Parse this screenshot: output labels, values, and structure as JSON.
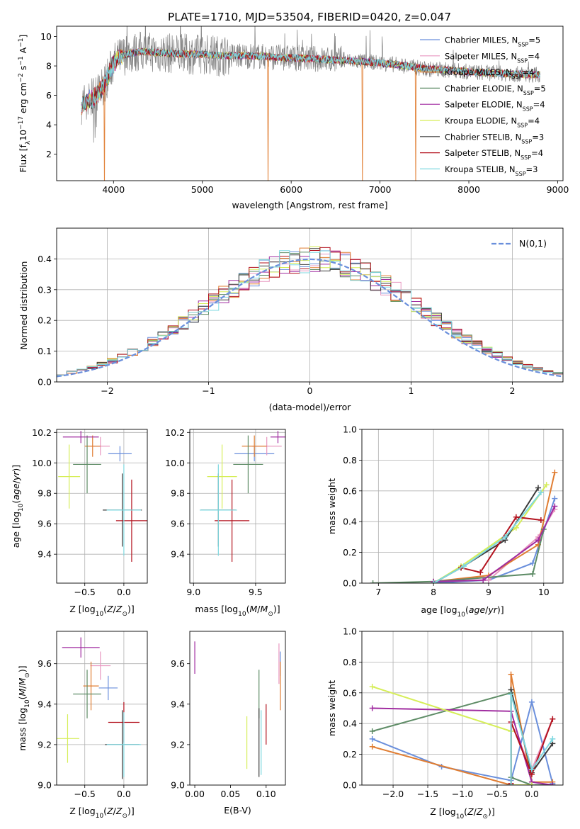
{
  "figure_title": "PLATE=1710, MJD=53504, FIBERID=0420, z=0.047",
  "colors": {
    "Chabrier MILES": "#6a8fdc",
    "Salpeter MILES": "#e897c0",
    "Kroupa MILES": "#e07d32",
    "Chabrier ELODIE": "#5e8c66",
    "Salpeter ELODIE": "#a02ca0",
    "Kroupa ELODIE": "#d6ee58",
    "Chabrier STELIB": "#3a3a3a",
    "Salpeter STELIB": "#b3121e",
    "Kroupa STELIB": "#7fd8e0",
    "data": "#808080",
    "normal": "#6a8fdc"
  },
  "chart_data": [
    {
      "id": "spectrum",
      "type": "line",
      "xlabel": "wavelength [Angstrom, rest frame]",
      "ylabel": "Flux [f_λ10^-17 erg cm^-2 s^-1 A^-1]",
      "xlim": [
        3360,
        9060
      ],
      "ylim": [
        0.2,
        10.7
      ],
      "xticks": [
        4000,
        5000,
        6000,
        7000,
        8000,
        9000
      ],
      "yticks": [
        2,
        4,
        6,
        8,
        10
      ],
      "grid": false,
      "legend_position": "top-right",
      "continuum": {
        "x": [
          3640,
          3700,
          3800,
          3900,
          4000,
          4100,
          4300,
          4500,
          4800,
          5000,
          5200,
          5500,
          5800,
          6000,
          6200,
          6500,
          6800,
          7000,
          7300,
          7500,
          7800,
          8000,
          8300,
          8500,
          8800
        ],
        "y": [
          5.4,
          5.6,
          5.9,
          6.8,
          8.2,
          8.7,
          9.0,
          8.9,
          8.8,
          8.8,
          8.7,
          8.7,
          8.6,
          8.55,
          8.5,
          8.4,
          8.3,
          8.2,
          8.0,
          7.8,
          7.7,
          7.6,
          7.5,
          7.45,
          7.4
        ]
      },
      "spikes": [
        {
          "series": "Kroupa MILES",
          "x": 3900
        },
        {
          "series": "Kroupa MILES",
          "x": 5740
        },
        {
          "series": "Kroupa MILES",
          "x": 6800
        },
        {
          "series": "Kroupa MILES",
          "x": 7400
        }
      ],
      "series": [
        {
          "name": "Chabrier MILES",
          "nssp": "5"
        },
        {
          "name": "Salpeter MILES",
          "nssp": "4"
        },
        {
          "name": "Kroupa MILES",
          "nssp": "4"
        },
        {
          "name": "Chabrier ELODIE",
          "nssp": "5"
        },
        {
          "name": "Salpeter ELODIE",
          "nssp": "4"
        },
        {
          "name": "Kroupa ELODIE",
          "nssp": "4"
        },
        {
          "name": "Chabrier STELIB",
          "nssp": "3"
        },
        {
          "name": "Salpeter STELIB",
          "nssp": "4"
        },
        {
          "name": "Kroupa STELIB",
          "nssp": "3"
        }
      ]
    },
    {
      "id": "residuals",
      "type": "histogram",
      "xlabel": "(data-model)/error",
      "ylabel": "Normed distribution",
      "xlim": [
        -2.5,
        2.5
      ],
      "ylim": [
        0,
        0.5
      ],
      "xticks": [
        -2,
        -1,
        0,
        1,
        2
      ],
      "yticks": [
        0.0,
        0.1,
        0.2,
        0.3,
        0.4
      ],
      "grid": true,
      "legend_position": "top-right",
      "normal_label": "N(0,1)",
      "bin_width": 0.1
    },
    {
      "id": "age_vs_Z",
      "type": "scatter",
      "xlabel": "Z [log10(Z/Z_sun)]",
      "ylabel": "age  [log10(age/yr)]",
      "xlim": [
        -0.86,
        0.3
      ],
      "ylim": [
        9.21,
        10.22
      ],
      "xticks": [
        -0.5,
        0.0
      ],
      "yticks": [
        9.4,
        9.6,
        9.8,
        10.0,
        10.2
      ],
      "grid": true,
      "points": [
        {
          "series": "Chabrier MILES",
          "x": -0.05,
          "y": 10.06,
          "xerr": 0.15,
          "yerr": 0.05
        },
        {
          "series": "Salpeter MILES",
          "x": -0.3,
          "y": 10.11,
          "xerr": 0.12,
          "yerr": 0.06
        },
        {
          "series": "Kroupa MILES",
          "x": -0.4,
          "y": 10.11,
          "xerr": 0.1,
          "yerr": 0.07
        },
        {
          "series": "Chabrier ELODIE",
          "x": -0.47,
          "y": 9.99,
          "xerr": 0.18,
          "yerr": 0.19
        },
        {
          "series": "Salpeter ELODIE",
          "x": -0.55,
          "y": 10.17,
          "xerr": 0.23,
          "yerr": 0.04
        },
        {
          "series": "Kroupa ELODIE",
          "x": -0.7,
          "y": 9.91,
          "xerr": 0.14,
          "yerr": 0.21
        },
        {
          "series": "Chabrier STELIB",
          "x": -0.02,
          "y": 9.69,
          "xerr": 0.25,
          "yerr": 0.24
        },
        {
          "series": "Salpeter STELIB",
          "x": 0.1,
          "y": 9.62,
          "xerr": 0.2,
          "yerr": 0.27
        },
        {
          "series": "Kroupa STELIB",
          "x": 0.0,
          "y": 9.69,
          "xerr": 0.22,
          "yerr": 0.3
        }
      ]
    },
    {
      "id": "age_vs_mass",
      "type": "scatter",
      "xlabel": "mass [log10(M/M_sun)]",
      "ylabel": "",
      "xlim": [
        8.97,
        9.74
      ],
      "ylim": [
        9.21,
        10.22
      ],
      "xticks": [
        9.0,
        9.5
      ],
      "yticks": [
        9.4,
        9.6,
        9.8,
        10.0,
        10.2
      ],
      "grid": true,
      "points": [
        {
          "series": "Chabrier MILES",
          "x": 9.49,
          "y": 10.06,
          "xerr": 0.16,
          "yerr": 0.05
        },
        {
          "series": "Salpeter MILES",
          "x": 9.59,
          "y": 10.11,
          "xerr": 0.12,
          "yerr": 0.06
        },
        {
          "series": "Kroupa MILES",
          "x": 9.49,
          "y": 10.11,
          "xerr": 0.1,
          "yerr": 0.07
        },
        {
          "series": "Chabrier ELODIE",
          "x": 9.44,
          "y": 9.99,
          "xerr": 0.12,
          "yerr": 0.19
        },
        {
          "series": "Salpeter ELODIE",
          "x": 9.68,
          "y": 10.17,
          "xerr": 0.06,
          "yerr": 0.04
        },
        {
          "series": "Kroupa ELODIE",
          "x": 9.23,
          "y": 9.91,
          "xerr": 0.12,
          "yerr": 0.21
        },
        {
          "series": "Chabrier STELIB",
          "x": 9.2,
          "y": 9.69,
          "xerr": 0.14,
          "yerr": 0.24
        },
        {
          "series": "Salpeter STELIB",
          "x": 9.31,
          "y": 9.62,
          "xerr": 0.14,
          "yerr": 0.27
        },
        {
          "series": "Kroupa STELIB",
          "x": 9.2,
          "y": 9.69,
          "xerr": 0.15,
          "yerr": 0.3
        }
      ]
    },
    {
      "id": "massweight_vs_age",
      "type": "line",
      "xlabel": "age  [log10(age/yr)]",
      "ylabel": "mass weight",
      "xlim": [
        6.7,
        10.35
      ],
      "ylim": [
        0,
        1
      ],
      "xticks": [
        7,
        8,
        9,
        10
      ],
      "yticks": [
        0.0,
        0.2,
        0.4,
        0.6,
        0.8,
        1.0
      ],
      "grid": true,
      "series": [
        {
          "name": "Chabrier MILES",
          "x": [
            8.0,
            9.0,
            9.8,
            10.2
          ],
          "y": [
            0.0,
            0.02,
            0.13,
            0.55
          ]
        },
        {
          "name": "Salpeter MILES",
          "x": [
            8.0,
            9.0,
            9.9,
            10.2
          ],
          "y": [
            0.01,
            0.02,
            0.3,
            0.48
          ]
        },
        {
          "name": "Kroupa MILES",
          "x": [
            8.0,
            9.0,
            9.9,
            10.2
          ],
          "y": [
            0.01,
            0.05,
            0.25,
            0.72
          ]
        },
        {
          "name": "Chabrier ELODIE",
          "x": [
            6.9,
            8.0,
            9.8,
            10.0
          ],
          "y": [
            0.0,
            0.01,
            0.06,
            0.35
          ]
        },
        {
          "name": "Salpeter ELODIE",
          "x": [
            8.0,
            8.9,
            9.9,
            10.2
          ],
          "y": [
            0.01,
            0.02,
            0.28,
            0.5
          ]
        },
        {
          "name": "Kroupa ELODIE",
          "x": [
            8.0,
            8.5,
            9.5,
            10.05
          ],
          "y": [
            0.0,
            0.11,
            0.36,
            0.64
          ]
        },
        {
          "name": "Chabrier STELIB",
          "x": [
            8.0,
            8.5,
            9.3,
            9.9
          ],
          "y": [
            0.0,
            0.1,
            0.28,
            0.62
          ]
        },
        {
          "name": "Salpeter STELIB",
          "x": [
            8.5,
            8.85,
            9.5,
            9.95
          ],
          "y": [
            0.1,
            0.07,
            0.43,
            0.41
          ]
        },
        {
          "name": "Kroupa STELIB",
          "x": [
            8.0,
            8.55,
            9.3,
            9.95
          ],
          "y": [
            0.0,
            0.11,
            0.3,
            0.59
          ]
        }
      ]
    },
    {
      "id": "mass_vs_Z",
      "type": "scatter",
      "xlabel": "Z [log10(Z/Z_sun)]",
      "ylabel": "mass [log10(M/M_sun)]",
      "xlim": [
        -0.86,
        0.3
      ],
      "ylim": [
        9.0,
        9.76
      ],
      "xticks": [
        -0.5,
        0.0
      ],
      "yticks": [
        9.0,
        9.2,
        9.4,
        9.6
      ],
      "grid": true,
      "points": [
        {
          "series": "Chabrier MILES",
          "x": -0.2,
          "y": 9.48,
          "xerr": 0.12,
          "yerr": 0.06
        },
        {
          "series": "Salpeter MILES",
          "x": -0.3,
          "y": 9.59,
          "xerr": 0.13,
          "yerr": 0.07
        },
        {
          "series": "Kroupa MILES",
          "x": -0.42,
          "y": 9.49,
          "xerr": 0.1,
          "yerr": 0.12
        },
        {
          "series": "Chabrier ELODIE",
          "x": -0.47,
          "y": 9.45,
          "xerr": 0.18,
          "yerr": 0.12
        },
        {
          "series": "Salpeter ELODIE",
          "x": -0.55,
          "y": 9.68,
          "xerr": 0.24,
          "yerr": 0.05
        },
        {
          "series": "Kroupa ELODIE",
          "x": -0.72,
          "y": 9.23,
          "xerr": 0.15,
          "yerr": 0.12
        },
        {
          "series": "Chabrier STELIB",
          "x": -0.02,
          "y": 9.2,
          "xerr": 0.22,
          "yerr": 0.17
        },
        {
          "series": "Salpeter STELIB",
          "x": 0.0,
          "y": 9.31,
          "xerr": 0.2,
          "yerr": 0.1
        },
        {
          "series": "Kroupa STELIB",
          "x": 0.0,
          "y": 9.2,
          "xerr": 0.22,
          "yerr": 0.16
        }
      ]
    },
    {
      "id": "mass_vs_ebv",
      "type": "scatter",
      "xlabel": "E(B-V)",
      "ylabel": "",
      "xlim": [
        -0.007,
        0.127
      ],
      "ylim": [
        9.0,
        9.76
      ],
      "xticks": [
        0.0,
        0.05,
        0.1
      ],
      "yticks": [
        9.0,
        9.2,
        9.4,
        9.6
      ],
      "grid": false,
      "points": [
        {
          "series": "Chabrier MILES",
          "x": 0.12,
          "y": 9.6,
          "xerr": 0.0,
          "yerr": 0.06
        },
        {
          "series": "Salpeter MILES",
          "x": 0.118,
          "y": 9.6,
          "xerr": 0.0,
          "yerr": 0.1
        },
        {
          "series": "Kroupa MILES",
          "x": 0.12,
          "y": 9.49,
          "xerr": 0.0,
          "yerr": 0.12
        },
        {
          "series": "Chabrier ELODIE",
          "x": 0.09,
          "y": 9.45,
          "xerr": 0.0,
          "yerr": 0.12
        },
        {
          "series": "Salpeter ELODIE",
          "x": 0.0,
          "y": 9.63,
          "xerr": 0.0,
          "yerr": 0.08
        },
        {
          "series": "Kroupa ELODIE",
          "x": 0.073,
          "y": 9.21,
          "xerr": 0.0,
          "yerr": 0.13
        },
        {
          "series": "Chabrier STELIB",
          "x": 0.09,
          "y": 9.21,
          "xerr": 0.0,
          "yerr": 0.17
        },
        {
          "series": "Salpeter STELIB",
          "x": 0.1,
          "y": 9.3,
          "xerr": 0.0,
          "yerr": 0.1
        },
        {
          "series": "Kroupa STELIB",
          "x": 0.093,
          "y": 9.21,
          "xerr": 0.0,
          "yerr": 0.16
        }
      ]
    },
    {
      "id": "massweight_vs_Z",
      "type": "line",
      "xlabel": "Z [log10(Z/Z_sun)]",
      "ylabel": "mass weight",
      "xlim": [
        -2.45,
        0.45
      ],
      "ylim": [
        0,
        1
      ],
      "xticks": [
        -2.0,
        -1.5,
        -1.0,
        -0.5,
        0.0
      ],
      "yticks": [
        0.0,
        0.2,
        0.4,
        0.6,
        0.8,
        1.0
      ],
      "grid": true,
      "series": [
        {
          "name": "Chabrier MILES",
          "x": [
            -2.3,
            -1.3,
            -0.3,
            0.0,
            0.3
          ],
          "y": [
            0.3,
            0.12,
            0.03,
            0.54,
            0.01
          ]
        },
        {
          "name": "Salpeter MILES",
          "x": [
            -0.3,
            0.0,
            0.3
          ],
          "y": [
            0.4,
            0.1,
            0.43
          ]
        },
        {
          "name": "Kroupa MILES",
          "x": [
            -2.3,
            -0.3,
            -0.3,
            0.0,
            0.3
          ],
          "y": [
            0.25,
            0.0,
            0.72,
            0.02,
            0.02
          ]
        },
        {
          "name": "Chabrier ELODIE",
          "x": [
            -2.3,
            -0.3,
            -0.3,
            0.0,
            0.3
          ],
          "y": [
            0.35,
            0.6,
            0.05,
            0.0,
            0.0
          ]
        },
        {
          "name": "Salpeter ELODIE",
          "x": [
            -2.3,
            -0.3,
            0.0,
            0.3
          ],
          "y": [
            0.5,
            0.48,
            0.02,
            0.0
          ]
        },
        {
          "name": "Kroupa ELODIE",
          "x": [
            -2.3,
            -0.3,
            -0.3,
            0.0
          ],
          "y": [
            0.64,
            0.35,
            0.0,
            0.0
          ]
        },
        {
          "name": "Chabrier STELIB",
          "x": [
            -0.3,
            -0.3,
            0.0,
            0.3
          ],
          "y": [
            0.0,
            0.62,
            0.08,
            0.27
          ]
        },
        {
          "name": "Salpeter STELIB",
          "x": [
            -0.3,
            -0.3,
            0.0,
            0.3
          ],
          "y": [
            0.01,
            0.41,
            0.07,
            0.43
          ]
        },
        {
          "name": "Kroupa STELIB",
          "x": [
            -0.3,
            -0.3,
            0.0,
            0.3
          ],
          "y": [
            0.0,
            0.59,
            0.1,
            0.3
          ]
        }
      ]
    }
  ]
}
